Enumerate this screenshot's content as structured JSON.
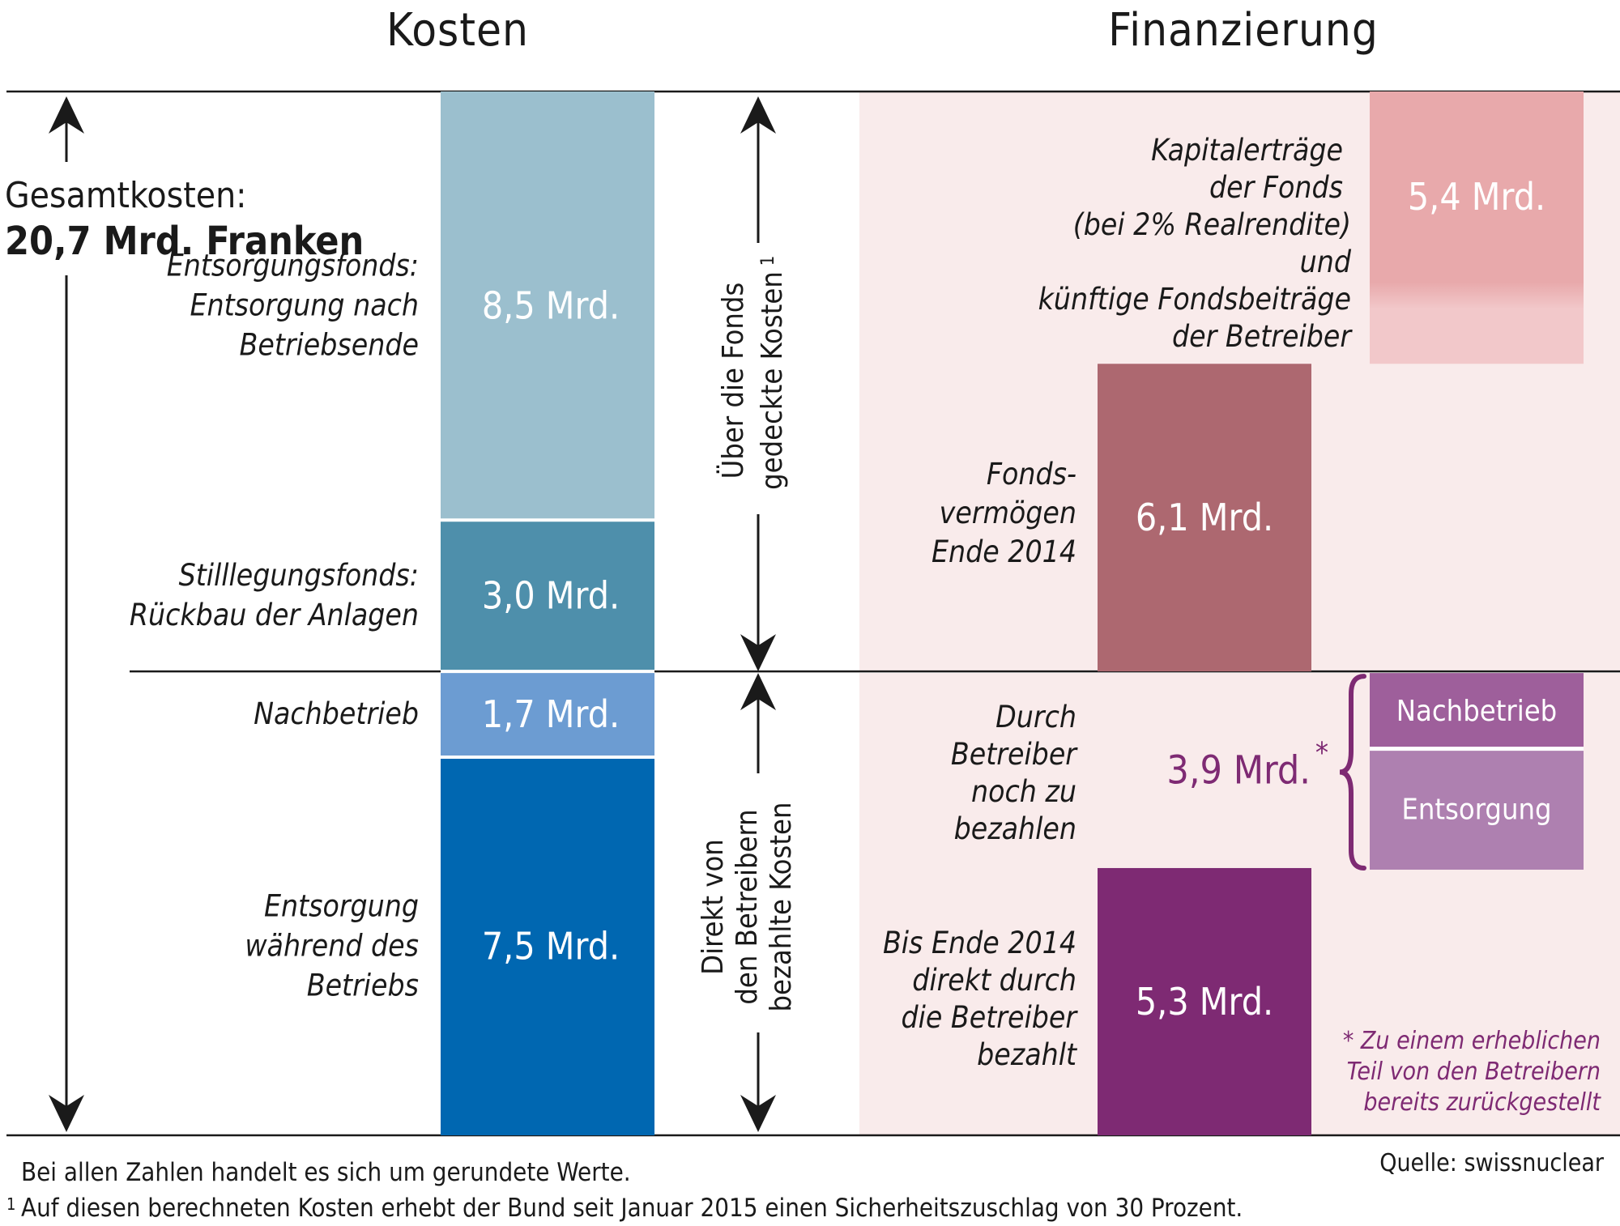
{
  "chart_data": {
    "type": "bar",
    "unit": "Mrd.",
    "headers": {
      "left": "Kosten",
      "right": "Finanzierung"
    },
    "total": {
      "label": "Gesamtkosten:",
      "value": "20,7 Mrd. Franken",
      "number": 20.7
    },
    "kosten": [
      {
        "key": "entsorgungsfonds",
        "value": 8.5,
        "value_label": "8,5 Mrd.",
        "color": "#9bbfce",
        "label_lines": [
          "Entsorgungsfonds:",
          "Entsorgung nach",
          "Betriebsende"
        ]
      },
      {
        "key": "stilllegungsfonds",
        "value": 3.0,
        "value_label": "3,0 Mrd.",
        "color": "#4e8fab",
        "label_lines": [
          "Stilllegungsfonds:",
          "Rückbau der Anlagen"
        ]
      },
      {
        "key": "nachbetrieb",
        "value": 1.7,
        "value_label": "1,7 Mrd.",
        "color": "#6c9cd2",
        "label_lines": [
          "Nachbetrieb"
        ]
      },
      {
        "key": "entsorgung_betrieb",
        "value": 7.5,
        "value_label": "7,5 Mrd.",
        "color": "#0067b1",
        "label_lines": [
          "Entsorgung",
          "während des",
          "Betriebs"
        ]
      }
    ],
    "brackets": {
      "fonds": [
        "Über die Fonds",
        "gedeckte Kosten"
      ],
      "fonds_sup": "1",
      "direkt": [
        "Direkt von",
        "den Betreibern",
        "bezahlte Kosten"
      ]
    },
    "finanzierung": {
      "kapitalertraege": {
        "value": 5.4,
        "value_label": "5,4 Mrd.",
        "color": "#e8a9ab",
        "label_lines": [
          "Kapitalerträge",
          "der Fonds",
          "(bei 2% Realrendite)",
          "und",
          "künftige Fondsbeiträge",
          "der Betreiber"
        ]
      },
      "fondsvermoegen": {
        "value": 6.1,
        "value_label": "6,1 Mrd.",
        "color": "#ad6870",
        "label_lines": [
          "Fonds-",
          "vermögen",
          "Ende 2014"
        ]
      },
      "noch_zu_bezahlen": {
        "value": 3.9,
        "value_label": "3,9 Mrd.",
        "star": "*",
        "color": "#7e2a73",
        "label_lines": [
          "Durch",
          "Betreiber",
          "noch zu",
          "bezahlen"
        ],
        "parts": [
          {
            "label": "Nachbetrieb",
            "color": "#9e5f9b"
          },
          {
            "label": "Entsorgung",
            "color": "#ae80b0"
          }
        ]
      },
      "bezahlt": {
        "value": 5.3,
        "value_label": "5,3 Mrd.",
        "color": "#7e2a73",
        "label_lines": [
          "Bis Ende 2014",
          "direkt durch",
          "die Betreiber",
          "bezahlt"
        ]
      }
    },
    "annotation_lines": [
      "* Zu einem erheblichen",
      "Teil von den Betreibern",
      "bereits zurückgestellt"
    ],
    "source": "Quelle:  swissnuclear",
    "notes": [
      "Bei allen Zahlen handelt es sich um gerundete Werte.",
      "Auf diesen berechneten Kosten erhebt der Bund seit Januar 2015 einen Sicherheitszuschlag von 30 Prozent."
    ],
    "note_sup": "1",
    "colors": {
      "fin_bg": "#f9ebeb",
      "line": "#1a1a1a",
      "accent": "#7e2a73"
    }
  }
}
